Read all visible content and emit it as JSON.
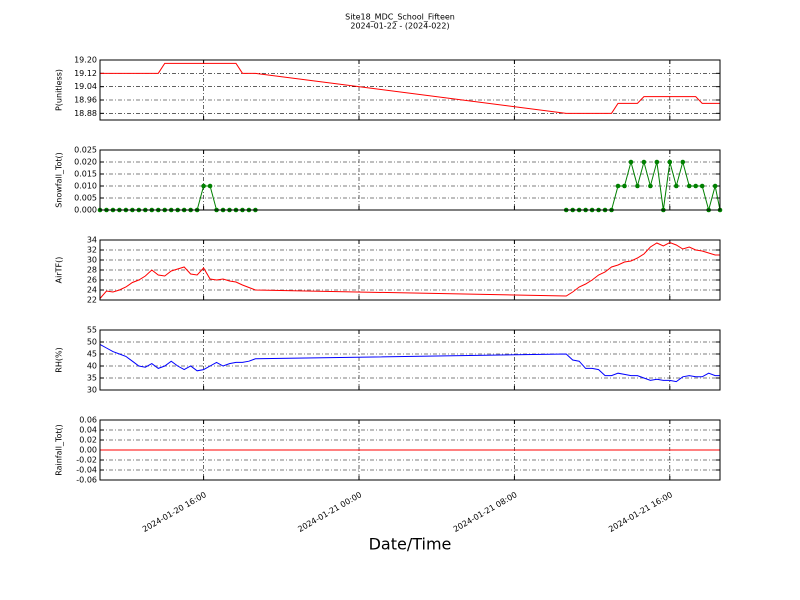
{
  "title": "Site18_MDC_School_Fifteen",
  "subtitle": "2024-01-22 - (2024-022)",
  "xlabel": "Date/Time",
  "xlim": [
    "2024-01-20 10:40",
    "2024-01-21 18:35"
  ],
  "xticks": [
    "2024-01-20 16:00",
    "2024-01-21 00:00",
    "2024-01-21 08:00",
    "2024-01-21 16:00"
  ],
  "chart_data": [
    {
      "type": "line",
      "ylabel": "P(unitless)",
      "ylim": [
        18.84,
        19.2
      ],
      "yticks": [
        {
          "value": 19.2,
          "label": "19.20"
        },
        19.12,
        19.04,
        18.96,
        18.88
      ],
      "grid": true,
      "x": [
        "2024-01-20 10:40",
        "2024-01-20 11:00",
        "2024-01-20 11:20",
        "2024-01-20 11:40",
        "2024-01-20 12:00",
        "2024-01-20 12:20",
        "2024-01-20 12:40",
        "2024-01-20 13:00",
        "2024-01-20 13:20",
        "2024-01-20 13:40",
        "2024-01-20 14:00",
        "2024-01-20 14:20",
        "2024-01-20 14:40",
        "2024-01-20 15:00",
        "2024-01-20 15:20",
        "2024-01-20 15:40",
        "2024-01-20 16:00",
        "2024-01-20 16:20",
        "2024-01-20 16:40",
        "2024-01-20 17:00",
        "2024-01-20 17:20",
        "2024-01-20 17:40",
        "2024-01-20 18:00",
        "2024-01-20 18:20",
        "2024-01-20 18:40",
        "2024-01-21 10:40",
        "2024-01-21 11:00",
        "2024-01-21 11:20",
        "2024-01-21 11:40",
        "2024-01-21 12:00",
        "2024-01-21 12:20",
        "2024-01-21 12:40",
        "2024-01-21 13:00",
        "2024-01-21 13:20",
        "2024-01-21 13:40",
        "2024-01-21 14:00",
        "2024-01-21 14:20",
        "2024-01-21 14:40",
        "2024-01-21 15:00",
        "2024-01-21 15:20",
        "2024-01-21 15:40",
        "2024-01-21 16:00",
        "2024-01-21 16:20",
        "2024-01-21 16:40",
        "2024-01-21 17:00",
        "2024-01-21 17:20",
        "2024-01-21 17:40",
        "2024-01-21 18:00",
        "2024-01-21 18:20",
        "2024-01-21 18:35"
      ],
      "series": [
        {
          "color": "#ff0000",
          "markers": false,
          "values": [
            19.12,
            19.12,
            19.12,
            19.12,
            19.12,
            19.12,
            19.12,
            19.12,
            19.12,
            19.12,
            19.18,
            19.18,
            19.18,
            19.18,
            19.18,
            19.18,
            19.18,
            19.18,
            19.18,
            19.18,
            19.18,
            19.18,
            19.12,
            19.12,
            19.12,
            18.88,
            18.88,
            18.88,
            18.88,
            18.88,
            18.88,
            18.88,
            18.88,
            18.94,
            18.94,
            18.94,
            18.94,
            18.98,
            18.98,
            18.98,
            18.98,
            18.98,
            18.98,
            18.98,
            18.98,
            18.98,
            18.94,
            18.94,
            18.94,
            18.94
          ]
        }
      ]
    },
    {
      "type": "line",
      "ylabel": "Snowfall_Tot()",
      "ylim": [
        0,
        0.025
      ],
      "yticks": [
        0.025,
        {
          "value": 0.02,
          "label": "0.020"
        },
        0.015,
        {
          "value": 0.01,
          "label": "0.010"
        },
        0.005,
        {
          "value": 0,
          "label": "0.000"
        }
      ],
      "grid": true,
      "x": [
        "2024-01-20 10:40",
        "2024-01-20 11:00",
        "2024-01-20 11:20",
        "2024-01-20 11:40",
        "2024-01-20 12:00",
        "2024-01-20 12:20",
        "2024-01-20 12:40",
        "2024-01-20 13:00",
        "2024-01-20 13:20",
        "2024-01-20 13:40",
        "2024-01-20 14:00",
        "2024-01-20 14:20",
        "2024-01-20 14:40",
        "2024-01-20 15:00",
        "2024-01-20 15:20",
        "2024-01-20 15:40",
        "2024-01-20 16:00",
        "2024-01-20 16:20",
        "2024-01-20 16:40",
        "2024-01-20 17:00",
        "2024-01-20 17:20",
        "2024-01-20 17:40",
        "2024-01-20 18:00",
        "2024-01-20 18:20",
        "2024-01-20 18:40",
        "2024-01-21 00:00",
        "2024-01-21 10:40",
        "2024-01-21 11:00",
        "2024-01-21 11:20",
        "2024-01-21 11:40",
        "2024-01-21 12:00",
        "2024-01-21 12:20",
        "2024-01-21 12:40",
        "2024-01-21 13:00",
        "2024-01-21 13:20",
        "2024-01-21 13:40",
        "2024-01-21 14:00",
        "2024-01-21 14:20",
        "2024-01-21 14:40",
        "2024-01-21 15:00",
        "2024-01-21 15:20",
        "2024-01-21 15:40",
        "2024-01-21 16:00",
        "2024-01-21 16:20",
        "2024-01-21 16:40",
        "2024-01-21 17:00",
        "2024-01-21 17:20",
        "2024-01-21 17:40",
        "2024-01-21 18:00",
        "2024-01-21 18:20",
        "2024-01-21 18:35"
      ],
      "series": [
        {
          "color": "#008000",
          "markers": true,
          "values": [
            0,
            0,
            0,
            0,
            0,
            0,
            0,
            0,
            0,
            0,
            0,
            0,
            0,
            0,
            0,
            0,
            0.01,
            0.01,
            0,
            0,
            0,
            0,
            0,
            0,
            0,
            null,
            0,
            0,
            0,
            0,
            0,
            0,
            0,
            0,
            0.01,
            0.01,
            0.02,
            0.01,
            0.02,
            0.01,
            0.02,
            0,
            0.02,
            0.01,
            0.02,
            0.01,
            0.01,
            0.01,
            0,
            0.01,
            0
          ]
        }
      ]
    },
    {
      "type": "line",
      "ylabel": "AirTF()",
      "ylim": [
        22,
        34
      ],
      "yticks": [
        34,
        32,
        30,
        28,
        26,
        24,
        22
      ],
      "grid": true,
      "x": [
        "2024-01-20 10:40",
        "2024-01-20 11:00",
        "2024-01-20 11:20",
        "2024-01-20 11:40",
        "2024-01-20 12:00",
        "2024-01-20 12:20",
        "2024-01-20 12:40",
        "2024-01-20 13:00",
        "2024-01-20 13:20",
        "2024-01-20 13:40",
        "2024-01-20 14:00",
        "2024-01-20 14:20",
        "2024-01-20 14:40",
        "2024-01-20 15:00",
        "2024-01-20 15:20",
        "2024-01-20 15:40",
        "2024-01-20 16:00",
        "2024-01-20 16:20",
        "2024-01-20 16:40",
        "2024-01-20 17:00",
        "2024-01-20 17:20",
        "2024-01-20 17:40",
        "2024-01-20 18:00",
        "2024-01-20 18:20",
        "2024-01-20 18:40",
        "2024-01-21 10:40",
        "2024-01-21 11:00",
        "2024-01-21 11:20",
        "2024-01-21 11:40",
        "2024-01-21 12:00",
        "2024-01-21 12:20",
        "2024-01-21 12:40",
        "2024-01-21 13:00",
        "2024-01-21 13:20",
        "2024-01-21 13:40",
        "2024-01-21 14:00",
        "2024-01-21 14:20",
        "2024-01-21 14:40",
        "2024-01-21 15:00",
        "2024-01-21 15:20",
        "2024-01-21 15:40",
        "2024-01-21 16:00",
        "2024-01-21 16:20",
        "2024-01-21 16:40",
        "2024-01-21 17:00",
        "2024-01-21 17:20",
        "2024-01-21 17:40",
        "2024-01-21 18:00",
        "2024-01-21 18:20",
        "2024-01-21 18:35"
      ],
      "series": [
        {
          "color": "#ff0000",
          "markers": false,
          "values": [
            22.3,
            23.8,
            23.6,
            24.0,
            24.6,
            25.5,
            26.0,
            26.8,
            28.0,
            27.0,
            26.8,
            27.8,
            28.2,
            28.6,
            27.2,
            27.0,
            28.4,
            26.2,
            26.0,
            26.2,
            25.8,
            25.6,
            25.0,
            24.5,
            24.0,
            22.8,
            23.6,
            24.6,
            25.2,
            26.0,
            27.0,
            27.6,
            28.6,
            29.0,
            29.6,
            29.8,
            30.4,
            31.2,
            32.6,
            33.4,
            32.8,
            33.5,
            33.0,
            32.2,
            32.6,
            32.0,
            31.8,
            31.4,
            31.0,
            31.0
          ]
        }
      ]
    },
    {
      "type": "line",
      "ylabel": "RH(%)",
      "ylim": [
        30,
        55
      ],
      "yticks": [
        55,
        50,
        45,
        40,
        35,
        30
      ],
      "grid": true,
      "x": [
        "2024-01-20 10:40",
        "2024-01-20 11:00",
        "2024-01-20 11:20",
        "2024-01-20 11:40",
        "2024-01-20 12:00",
        "2024-01-20 12:20",
        "2024-01-20 12:40",
        "2024-01-20 13:00",
        "2024-01-20 13:20",
        "2024-01-20 13:40",
        "2024-01-20 14:00",
        "2024-01-20 14:20",
        "2024-01-20 14:40",
        "2024-01-20 15:00",
        "2024-01-20 15:20",
        "2024-01-20 15:40",
        "2024-01-20 16:00",
        "2024-01-20 16:20",
        "2024-01-20 16:40",
        "2024-01-20 17:00",
        "2024-01-20 17:20",
        "2024-01-20 17:40",
        "2024-01-20 18:00",
        "2024-01-20 18:20",
        "2024-01-20 18:40",
        "2024-01-21 10:40",
        "2024-01-21 11:00",
        "2024-01-21 11:20",
        "2024-01-21 11:40",
        "2024-01-21 12:00",
        "2024-01-21 12:20",
        "2024-01-21 12:40",
        "2024-01-21 13:00",
        "2024-01-21 13:20",
        "2024-01-21 13:40",
        "2024-01-21 14:00",
        "2024-01-21 14:20",
        "2024-01-21 14:40",
        "2024-01-21 15:00",
        "2024-01-21 15:20",
        "2024-01-21 15:40",
        "2024-01-21 16:00",
        "2024-01-21 16:20",
        "2024-01-21 16:40",
        "2024-01-21 17:00",
        "2024-01-21 17:20",
        "2024-01-21 17:40",
        "2024-01-21 18:00",
        "2024-01-21 18:20",
        "2024-01-21 18:35"
      ],
      "series": [
        {
          "color": "#0000ff",
          "markers": false,
          "values": [
            49,
            47.5,
            46,
            45,
            44,
            42,
            40,
            39.5,
            41,
            39,
            40,
            42,
            40,
            38.5,
            40,
            38,
            38.5,
            40,
            41.5,
            40,
            41,
            41.5,
            41.5,
            42,
            43,
            45,
            42.5,
            42,
            39,
            39,
            38.5,
            36,
            36,
            37,
            36.5,
            36,
            36,
            35,
            34,
            34.5,
            34,
            34,
            33.5,
            35.5,
            36,
            35.5,
            35.5,
            37,
            36,
            36
          ]
        }
      ]
    },
    {
      "type": "line",
      "ylabel": "Rainfall_Tot()",
      "ylim": [
        -0.06,
        0.06
      ],
      "yticks": [
        0.06,
        0.04,
        0.02,
        {
          "value": 0,
          "label": "0.00"
        },
        -0.02,
        -0.04,
        -0.06
      ],
      "grid": true,
      "x": [
        "2024-01-20 10:40",
        "2024-01-20 11:00",
        "2024-01-20 11:20",
        "2024-01-20 11:40",
        "2024-01-20 12:00",
        "2024-01-20 12:20",
        "2024-01-20 12:40",
        "2024-01-20 13:00",
        "2024-01-20 13:20",
        "2024-01-20 13:40",
        "2024-01-20 14:00",
        "2024-01-20 14:20",
        "2024-01-20 14:40",
        "2024-01-20 15:00",
        "2024-01-20 15:20",
        "2024-01-20 15:40",
        "2024-01-20 16:00",
        "2024-01-20 16:20",
        "2024-01-20 16:40",
        "2024-01-20 17:00",
        "2024-01-20 17:20",
        "2024-01-20 17:40",
        "2024-01-20 18:00",
        "2024-01-20 18:20",
        "2024-01-20 18:40",
        "2024-01-21 10:40",
        "2024-01-21 11:00",
        "2024-01-21 11:20",
        "2024-01-21 11:40",
        "2024-01-21 12:00",
        "2024-01-21 12:20",
        "2024-01-21 12:40",
        "2024-01-21 13:00",
        "2024-01-21 13:20",
        "2024-01-21 13:40",
        "2024-01-21 14:00",
        "2024-01-21 14:20",
        "2024-01-21 14:40",
        "2024-01-21 15:00",
        "2024-01-21 15:20",
        "2024-01-21 15:40",
        "2024-01-21 16:00",
        "2024-01-21 16:20",
        "2024-01-21 16:40",
        "2024-01-21 17:00",
        "2024-01-21 17:20",
        "2024-01-21 17:40",
        "2024-01-21 18:00",
        "2024-01-21 18:20",
        "2024-01-21 18:35"
      ],
      "series": [
        {
          "color": "#ff0000",
          "markers": false,
          "values": [
            0,
            0,
            0,
            0,
            0,
            0,
            0,
            0,
            0,
            0,
            0,
            0,
            0,
            0,
            0,
            0,
            0,
            0,
            0,
            0,
            0,
            0,
            0,
            0,
            0,
            0,
            0,
            0,
            0,
            0,
            0,
            0,
            0,
            0,
            0,
            0,
            0,
            0,
            0,
            0,
            0,
            0,
            0,
            0,
            0,
            0,
            0,
            0,
            0,
            0
          ]
        }
      ]
    }
  ]
}
